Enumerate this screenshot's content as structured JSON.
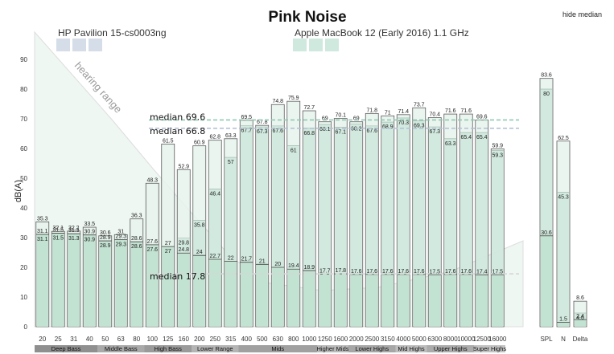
{
  "hide_median_label": "hide median",
  "chart_data": {
    "type": "bar",
    "title": "Pink Noise",
    "ylabel": "dB(A)",
    "ylim": [
      0,
      100
    ],
    "yticks": [
      0,
      10,
      20,
      30,
      40,
      50,
      60,
      70,
      80,
      90
    ],
    "hearing_range_label": "hearing range",
    "grid": false,
    "series": [
      {
        "name": "HP Pavilion 15-cs0003ng",
        "color": "#d5dde8"
      },
      {
        "name": "Apple MacBook 12 (Early 2016) 1.1 GHz",
        "color": "#cfe9de"
      }
    ],
    "categories": [
      "20",
      "25",
      "31",
      "40",
      "50",
      "63",
      "80",
      "100",
      "125",
      "160",
      "200",
      "250",
      "315",
      "400",
      "500",
      "630",
      "800",
      "1000",
      "1250",
      "1600",
      "2000",
      "2500",
      "3150",
      "4000",
      "5000",
      "6300",
      "8000",
      "10000",
      "12500",
      "16000"
    ],
    "bars": [
      {
        "top": 35.3,
        "mid": 31.1,
        "bottom": 31.1
      },
      {
        "top": 32.1,
        "mid": 31.5,
        "bottom": 31.5
      },
      {
        "top": 32.2,
        "mid": 31.3,
        "bottom": 31.3
      },
      {
        "top": 33.5,
        "mid": 30.9,
        "bottom": 30.9
      },
      {
        "top": 30.6,
        "mid": 28.9,
        "bottom": 28.9
      },
      {
        "top": 31,
        "mid": 29.3,
        "bottom": 29.3
      },
      {
        "top": 36.3,
        "mid": 28.6,
        "bottom": 28.6
      },
      {
        "top": 48.3,
        "mid": 27.6,
        "bottom": 27.6
      },
      {
        "top": 61.5,
        "mid": 27,
        "bottom": 27
      },
      {
        "top": 52.9,
        "mid": 29.8,
        "bottom": 24.8
      },
      {
        "top": 60.9,
        "mid": 35.8,
        "bottom": 24
      },
      {
        "top": 62.8,
        "mid": 46.4,
        "bottom": 22.7
      },
      {
        "top": 63.3,
        "mid": 57,
        "bottom": 22
      },
      {
        "top": 69.5,
        "mid": 67.7,
        "bottom": 21.7
      },
      {
        "top": 67.8,
        "mid": 67.3,
        "bottom": 21
      },
      {
        "top": 74.8,
        "mid": 67.6,
        "bottom": 20
      },
      {
        "top": 75.9,
        "mid": 61,
        "bottom": 19.4
      },
      {
        "top": 72.7,
        "mid": 66.8,
        "bottom": 18.9
      },
      {
        "top": 69,
        "mid": 68.1,
        "bottom": 17.7
      },
      {
        "top": 70.1,
        "mid": 67.1,
        "bottom": 17.8
      },
      {
        "top": 69,
        "mid": 68.2,
        "bottom": 17.6
      },
      {
        "top": 71.8,
        "mid": 67.6,
        "bottom": 17.6
      },
      {
        "top": 71,
        "mid": 68.9,
        "bottom": 17.6
      },
      {
        "top": 71.4,
        "mid": 70.3,
        "bottom": 17.6
      },
      {
        "top": 73.7,
        "mid": 69.3,
        "bottom": 17.6
      },
      {
        "top": 70.4,
        "mid": 67.3,
        "bottom": 17.5
      },
      {
        "top": 71.6,
        "mid": 63.3,
        "bottom": 17.6
      },
      {
        "top": 71.6,
        "mid": 65.4,
        "bottom": 17.6
      },
      {
        "top": 69.6,
        "mid": 65.4,
        "bottom": 17.4
      },
      {
        "top": 59.9,
        "mid": 59.3,
        "bottom": 17.5
      }
    ],
    "medians": [
      {
        "label": "median 69.6",
        "value": 69.6,
        "color": "#8fc9b4"
      },
      {
        "label": "median 66.8",
        "value": 66.8,
        "color": "#b3c2d6"
      },
      {
        "label": "median 17.8",
        "value": 17.8,
        "color": "#d6d6d6"
      }
    ],
    "summary": {
      "categories": [
        "SPL",
        "N",
        "Delta"
      ],
      "bars": [
        {
          "top": 83.6,
          "mid": 80,
          "bottom": 30.6
        },
        {
          "top": 62.5,
          "mid": 45.3,
          "bottom": 1.5
        },
        {
          "top": 8.6,
          "mid": 4.6,
          "bottom": 2.4
        }
      ]
    },
    "frequency_ranges": [
      {
        "label": "Deep Bass",
        "from": 0,
        "to": 4
      },
      {
        "label": "Middle Bass",
        "from": 4,
        "to": 7
      },
      {
        "label": "High Bass",
        "from": 7,
        "to": 10
      },
      {
        "label": "Lower Range",
        "from": 10,
        "to": 13
      },
      {
        "label": "Mids",
        "from": 13,
        "to": 18
      },
      {
        "label": "Higher Mids",
        "from": 18,
        "to": 20
      },
      {
        "label": "Lower Highs",
        "from": 20,
        "to": 23
      },
      {
        "label": "Mid Highs",
        "from": 23,
        "to": 25
      },
      {
        "label": "Upper Highs",
        "from": 25,
        "to": 28
      },
      {
        "label": "Super Highs",
        "from": 28,
        "to": 30
      }
    ]
  }
}
